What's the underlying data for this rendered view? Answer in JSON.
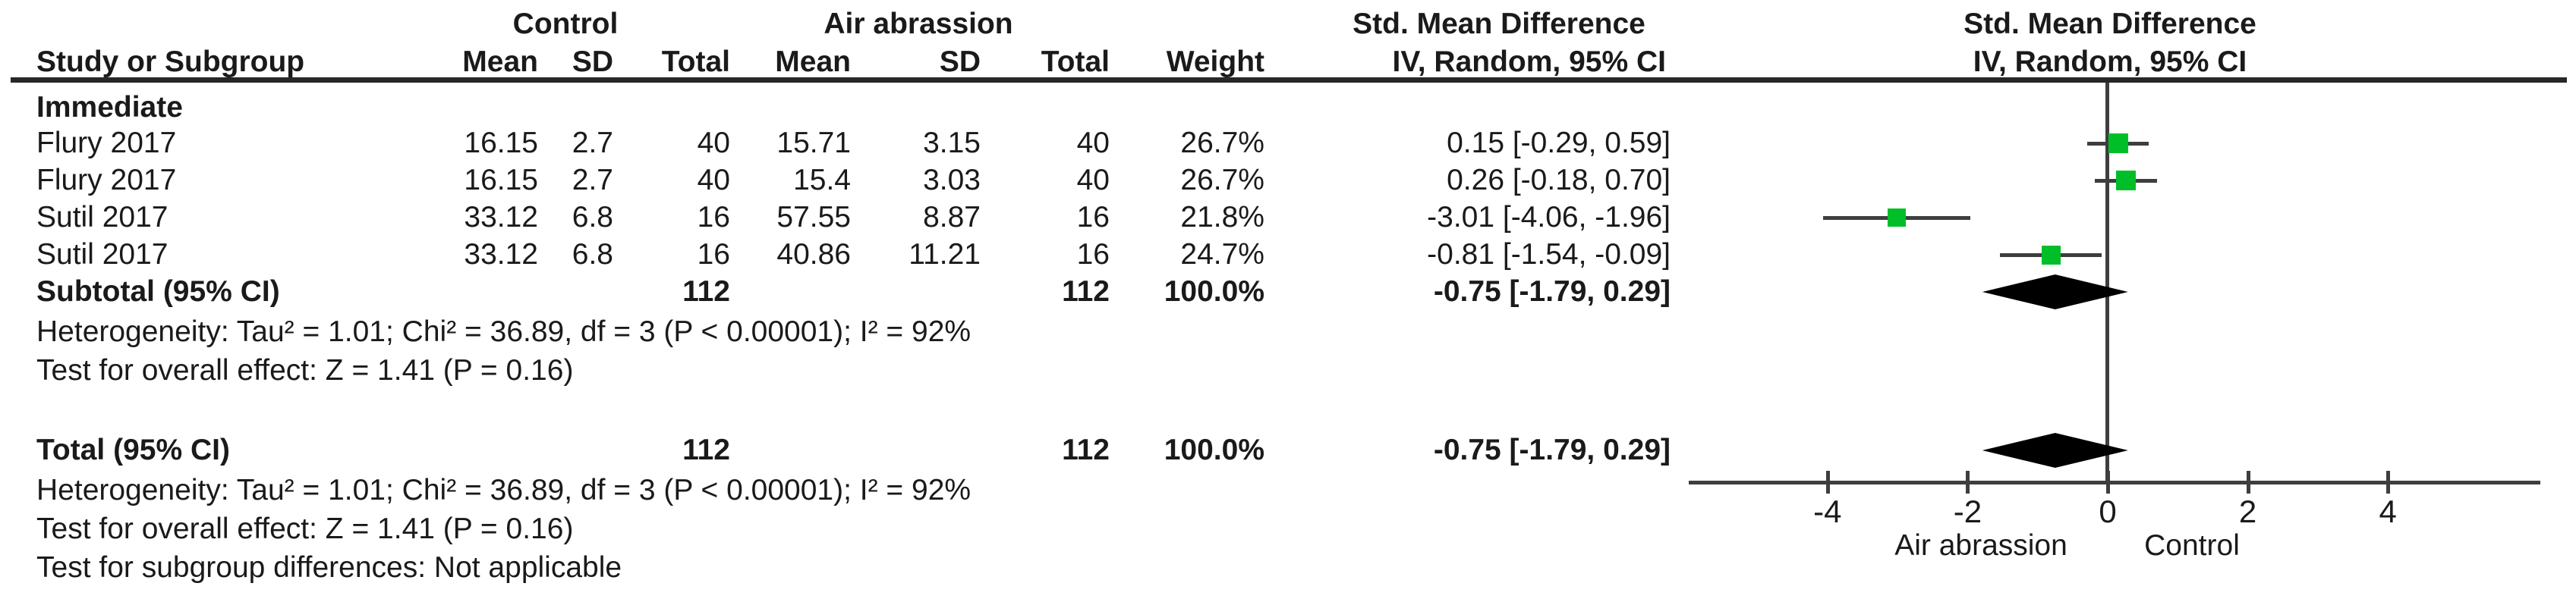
{
  "table": {
    "header_row1": {
      "control_group": "Control",
      "air_group": "Air abrassion",
      "smd_text_col": "Std. Mean Difference",
      "smd_plot_col": "Std. Mean Difference"
    },
    "header_row2": {
      "study": "Study or Subgroup",
      "c_mean": "Mean",
      "c_sd": "SD",
      "c_total": "Total",
      "a_mean": "Mean",
      "a_sd": "SD",
      "a_total": "Total",
      "weight": "Weight",
      "iv_text_col": "IV, Random, 95% CI",
      "iv_plot_col": "IV, Random, 95% CI"
    },
    "subgroup_label": "Immediate",
    "rows": [
      {
        "study": "Flury 2017",
        "c_mean": "16.15",
        "c_sd": "2.7",
        "c_total": "40",
        "a_mean": "15.71",
        "a_sd": "3.15",
        "a_total": "40",
        "weight": "26.7%",
        "ci": "0.15 [-0.29, 0.59]"
      },
      {
        "study": "Flury 2017",
        "c_mean": "16.15",
        "c_sd": "2.7",
        "c_total": "40",
        "a_mean": "15.4",
        "a_sd": "3.03",
        "a_total": "40",
        "weight": "26.7%",
        "ci": "0.26 [-0.18, 0.70]"
      },
      {
        "study": "Sutil 2017",
        "c_mean": "33.12",
        "c_sd": "6.8",
        "c_total": "16",
        "a_mean": "57.55",
        "a_sd": "8.87",
        "a_total": "16",
        "weight": "21.8%",
        "ci": "-3.01 [-4.06, -1.96]"
      },
      {
        "study": "Sutil 2017",
        "c_mean": "33.12",
        "c_sd": "6.8",
        "c_total": "16",
        "a_mean": "40.86",
        "a_sd": "11.21",
        "a_total": "16",
        "weight": "24.7%",
        "ci": "-0.81 [-1.54, -0.09]"
      }
    ],
    "subtotal": {
      "label": "Subtotal (95% CI)",
      "c_total": "112",
      "a_total": "112",
      "weight": "100.0%",
      "ci": "-0.75 [-1.79, 0.29]"
    },
    "subtotal_heterogeneity": "Heterogeneity: Tau² = 1.01; Chi² = 36.89, df = 3 (P < 0.00001); I² = 92%",
    "subtotal_overall_test": "Test for overall effect: Z = 1.41 (P = 0.16)",
    "total": {
      "label": "Total (95% CI)",
      "c_total": "112",
      "a_total": "112",
      "weight": "100.0%",
      "ci": "-0.75 [-1.79, 0.29]"
    },
    "total_heterogeneity": "Heterogeneity: Tau² = 1.01; Chi² = 36.89, df = 3 (P < 0.00001); I² = 92%",
    "total_overall_test": "Test for overall effect: Z = 1.41 (P = 0.16)",
    "subgroup_diff_test": "Test for subgroup differences: Not applicable"
  },
  "chart_data": {
    "type": "forest",
    "effect_measure": "Std. Mean Difference, IV, Random, 95% CI",
    "x_axis": {
      "ticks": [
        -4,
        -2,
        0,
        2,
        4
      ],
      "range": [
        -6,
        6.2
      ],
      "zero_line": 0,
      "label_left": "Air abrassion",
      "label_right": "Control"
    },
    "studies": [
      {
        "label": "Flury 2017",
        "smd": 0.15,
        "ci_low": -0.29,
        "ci_high": 0.59,
        "weight_pct": 26.7
      },
      {
        "label": "Flury 2017",
        "smd": 0.26,
        "ci_low": -0.18,
        "ci_high": 0.7,
        "weight_pct": 26.7
      },
      {
        "label": "Sutil 2017",
        "smd": -3.01,
        "ci_low": -4.06,
        "ci_high": -1.96,
        "weight_pct": 21.8
      },
      {
        "label": "Sutil 2017",
        "smd": -0.81,
        "ci_low": -1.54,
        "ci_high": -0.09,
        "weight_pct": 24.7
      }
    ],
    "subtotal_diamond": {
      "smd": -0.75,
      "ci_low": -1.79,
      "ci_high": 0.29
    },
    "total_diamond": {
      "smd": -0.75,
      "ci_low": -1.79,
      "ci_high": 0.29
    }
  },
  "colors": {
    "marker_green": "#00BE27",
    "diamond_black": "#000000",
    "line_gray": "#3e3e3e",
    "rule_dark": "#272727",
    "text": "#1a1a1a"
  }
}
